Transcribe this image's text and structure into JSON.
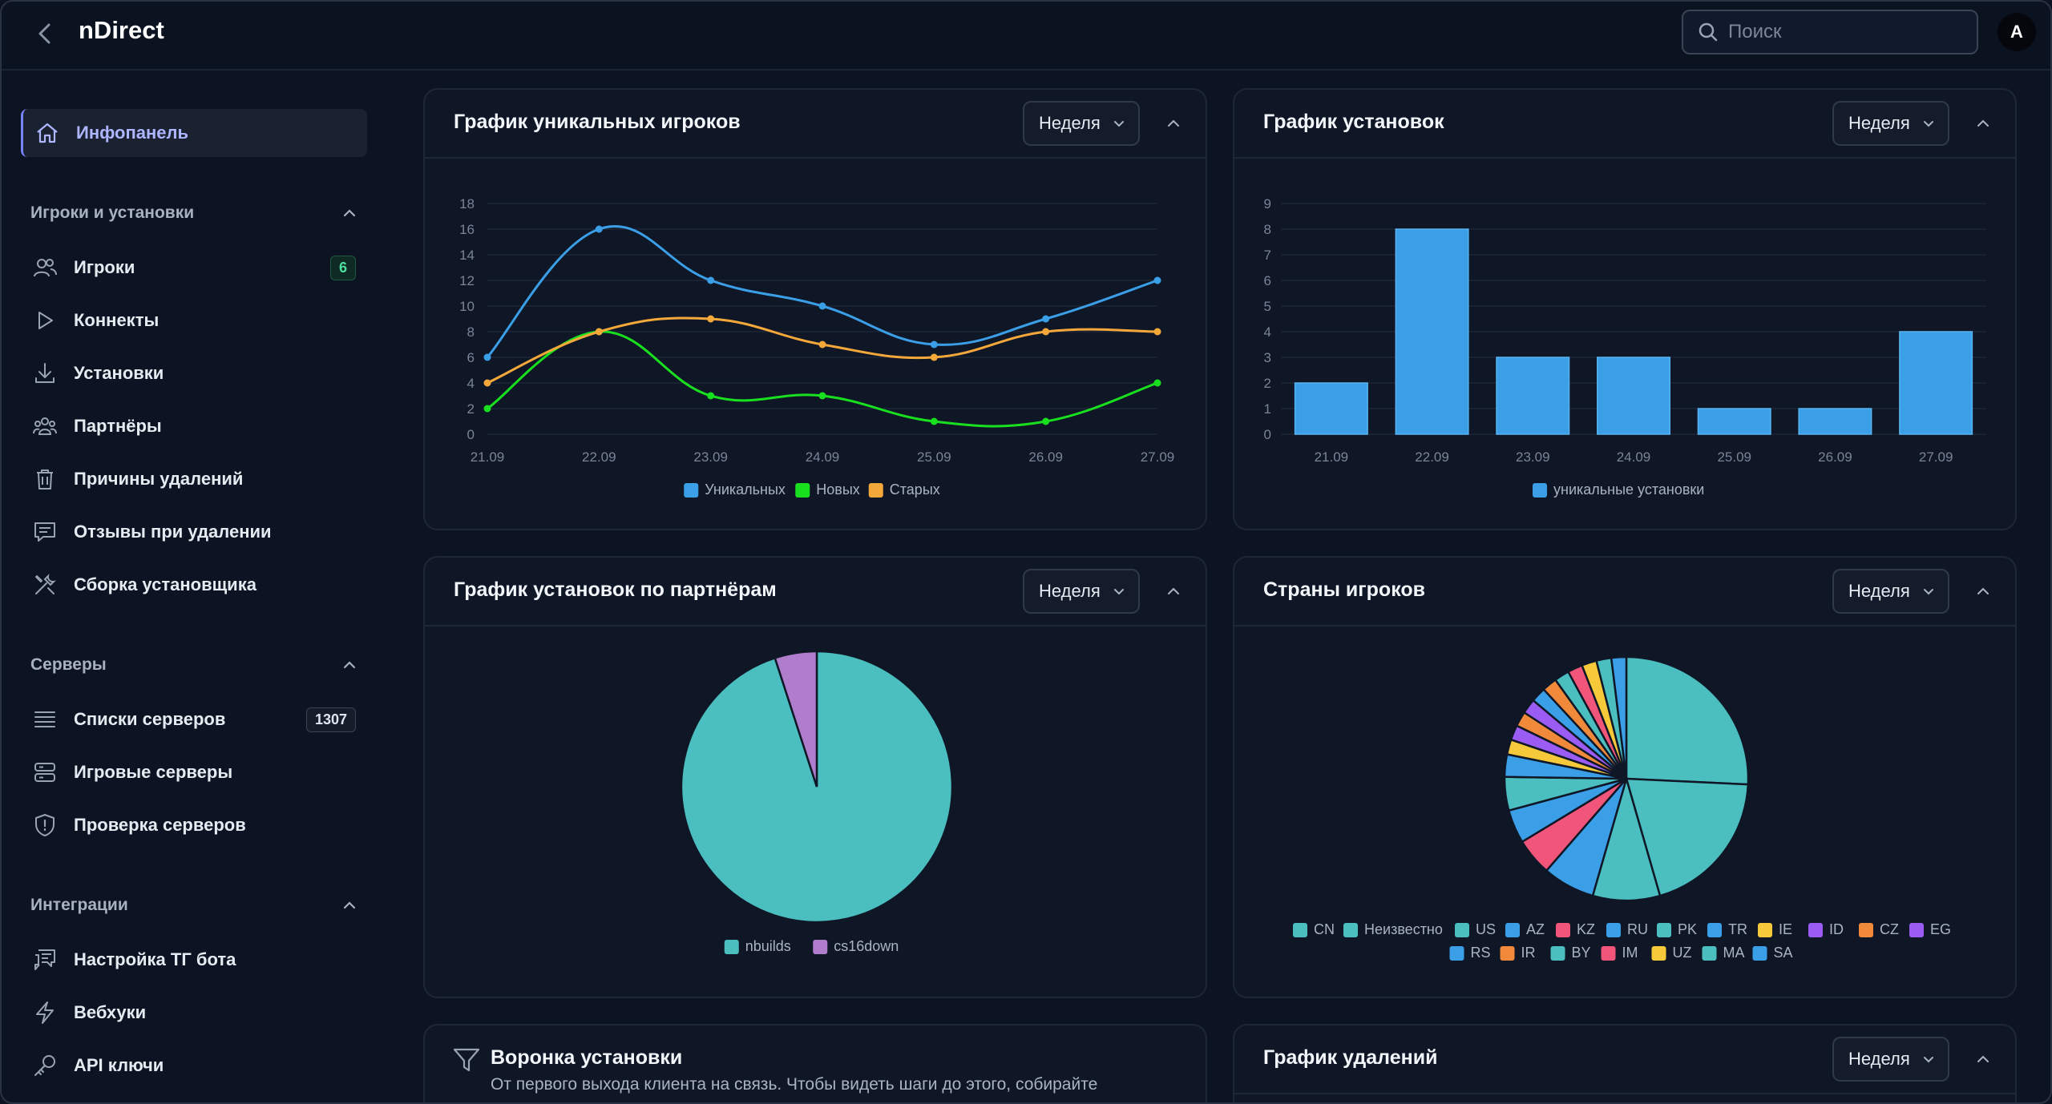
{
  "app": {
    "title": "nDirect",
    "avatar_letter": "A"
  },
  "search": {
    "placeholder": "Поиск"
  },
  "sidebar": {
    "dashboard": "Инфопанель",
    "sections": [
      {
        "label": "Игроки и установки",
        "items": [
          {
            "label": "Игроки",
            "icon": "users-icon",
            "badge": "6"
          },
          {
            "label": "Коннекты",
            "icon": "play-icon"
          },
          {
            "label": "Установки",
            "icon": "download-icon"
          },
          {
            "label": "Партнёры",
            "icon": "partners-icon"
          },
          {
            "label": "Причины удалений",
            "icon": "trash-icon"
          },
          {
            "label": "Отзывы при удалении",
            "icon": "feedback-icon"
          },
          {
            "label": "Сборка установщика",
            "icon": "tools-icon"
          }
        ]
      },
      {
        "label": "Серверы",
        "items": [
          {
            "label": "Списки серверов",
            "icon": "list-icon",
            "badge": "1307"
          },
          {
            "label": "Игровые серверы",
            "icon": "server-icon"
          },
          {
            "label": "Проверка серверов",
            "icon": "shield-icon"
          }
        ]
      },
      {
        "label": "Интеграции",
        "items": [
          {
            "label": "Настройка ТГ бота",
            "icon": "chat-icon"
          },
          {
            "label": "Вебхуки",
            "icon": "bolt-icon"
          },
          {
            "label": "API ключи",
            "icon": "key-icon"
          }
        ]
      }
    ]
  },
  "period_label": "Неделя",
  "cards": {
    "unique_players": {
      "title": "График уникальных игроков"
    },
    "installs": {
      "title": "График установок"
    },
    "partners": {
      "title": "График установок по партнёрам"
    },
    "countries": {
      "title": "Страны игроков"
    },
    "funnel": {
      "title": "Воронка установки",
      "subtitle": "От первого выхода клиента на связь. Чтобы видеть шаги до этого, собирайте"
    },
    "deletions": {
      "title": "График удалений"
    }
  },
  "colors": {
    "accent": "#7c83ff",
    "blue": "#3b9fe8",
    "green": "#19e01e",
    "orange": "#f5a83a",
    "teal": "#4bbfbf",
    "purple": "#b07ccc"
  },
  "chart_data": [
    {
      "type": "line",
      "x": [
        "21.09",
        "22.09",
        "23.09",
        "24.09",
        "25.09",
        "26.09",
        "27.09"
      ],
      "series": [
        {
          "name": "Уникальных",
          "color": "#3b9fe8",
          "values": [
            6,
            16,
            12,
            10,
            7,
            9,
            12
          ]
        },
        {
          "name": "Новых",
          "color": "#19e01e",
          "values": [
            2,
            8,
            3,
            3,
            1,
            1,
            4
          ]
        },
        {
          "name": "Старых",
          "color": "#f5a83a",
          "values": [
            4,
            8,
            9,
            7,
            6,
            8,
            8
          ]
        }
      ],
      "yticks": [
        "0",
        "2",
        "4",
        "6",
        "8",
        "10",
        "12",
        "14",
        "16",
        "18"
      ],
      "ylim": [
        0,
        18
      ]
    },
    {
      "type": "bar",
      "categories": [
        "21.09",
        "22.09",
        "23.09",
        "24.09",
        "25.09",
        "26.09",
        "27.09"
      ],
      "series": [
        {
          "name": "уникальные установки",
          "color": "#3b9fe8",
          "values": [
            2,
            8,
            3,
            3,
            1,
            1,
            4
          ]
        }
      ],
      "yticks": [
        "0",
        "1",
        "2",
        "3",
        "4",
        "5",
        "6",
        "7",
        "8",
        "9"
      ],
      "ylim": [
        0,
        9
      ]
    },
    {
      "type": "pie",
      "slices": [
        {
          "name": "nbuilds",
          "color": "#4bbfbf",
          "value": 95
        },
        {
          "name": "cs16down",
          "color": "#b07ccc",
          "value": 5
        }
      ]
    },
    {
      "type": "pie",
      "slices": [
        {
          "name": "CN",
          "color": "#4bbfbf",
          "value": 26
        },
        {
          "name": "Неизвестно",
          "color": "#4bbfbf",
          "value": 20
        },
        {
          "name": "US",
          "color": "#4bbfbf",
          "value": 9
        },
        {
          "name": "AZ",
          "color": "#3b9fe8",
          "value": 7
        },
        {
          "name": "KZ",
          "color": "#f2557a",
          "value": 5
        },
        {
          "name": "RU",
          "color": "#3b9fe8",
          "value": 4.5
        },
        {
          "name": "PK",
          "color": "#4bbfbf",
          "value": 4.5
        },
        {
          "name": "TR",
          "color": "#3b9fe8",
          "value": 3
        },
        {
          "name": "IE",
          "color": "#f5c93a",
          "value": 2
        },
        {
          "name": "ID",
          "color": "#9a5cf2",
          "value": 2
        },
        {
          "name": "CZ",
          "color": "#f08a3a",
          "value": 2
        },
        {
          "name": "EG",
          "color": "#9a5cf2",
          "value": 2
        },
        {
          "name": "RS",
          "color": "#3b9fe8",
          "value": 2
        },
        {
          "name": "IR",
          "color": "#f08a3a",
          "value": 2
        },
        {
          "name": "BY",
          "color": "#4bbfbf",
          "value": 2
        },
        {
          "name": "IM",
          "color": "#f2557a",
          "value": 2
        },
        {
          "name": "UZ",
          "color": "#f5c93a",
          "value": 2
        },
        {
          "name": "MA",
          "color": "#4bbfbf",
          "value": 2
        },
        {
          "name": "SA",
          "color": "#3b9fe8",
          "value": 2
        }
      ]
    }
  ]
}
